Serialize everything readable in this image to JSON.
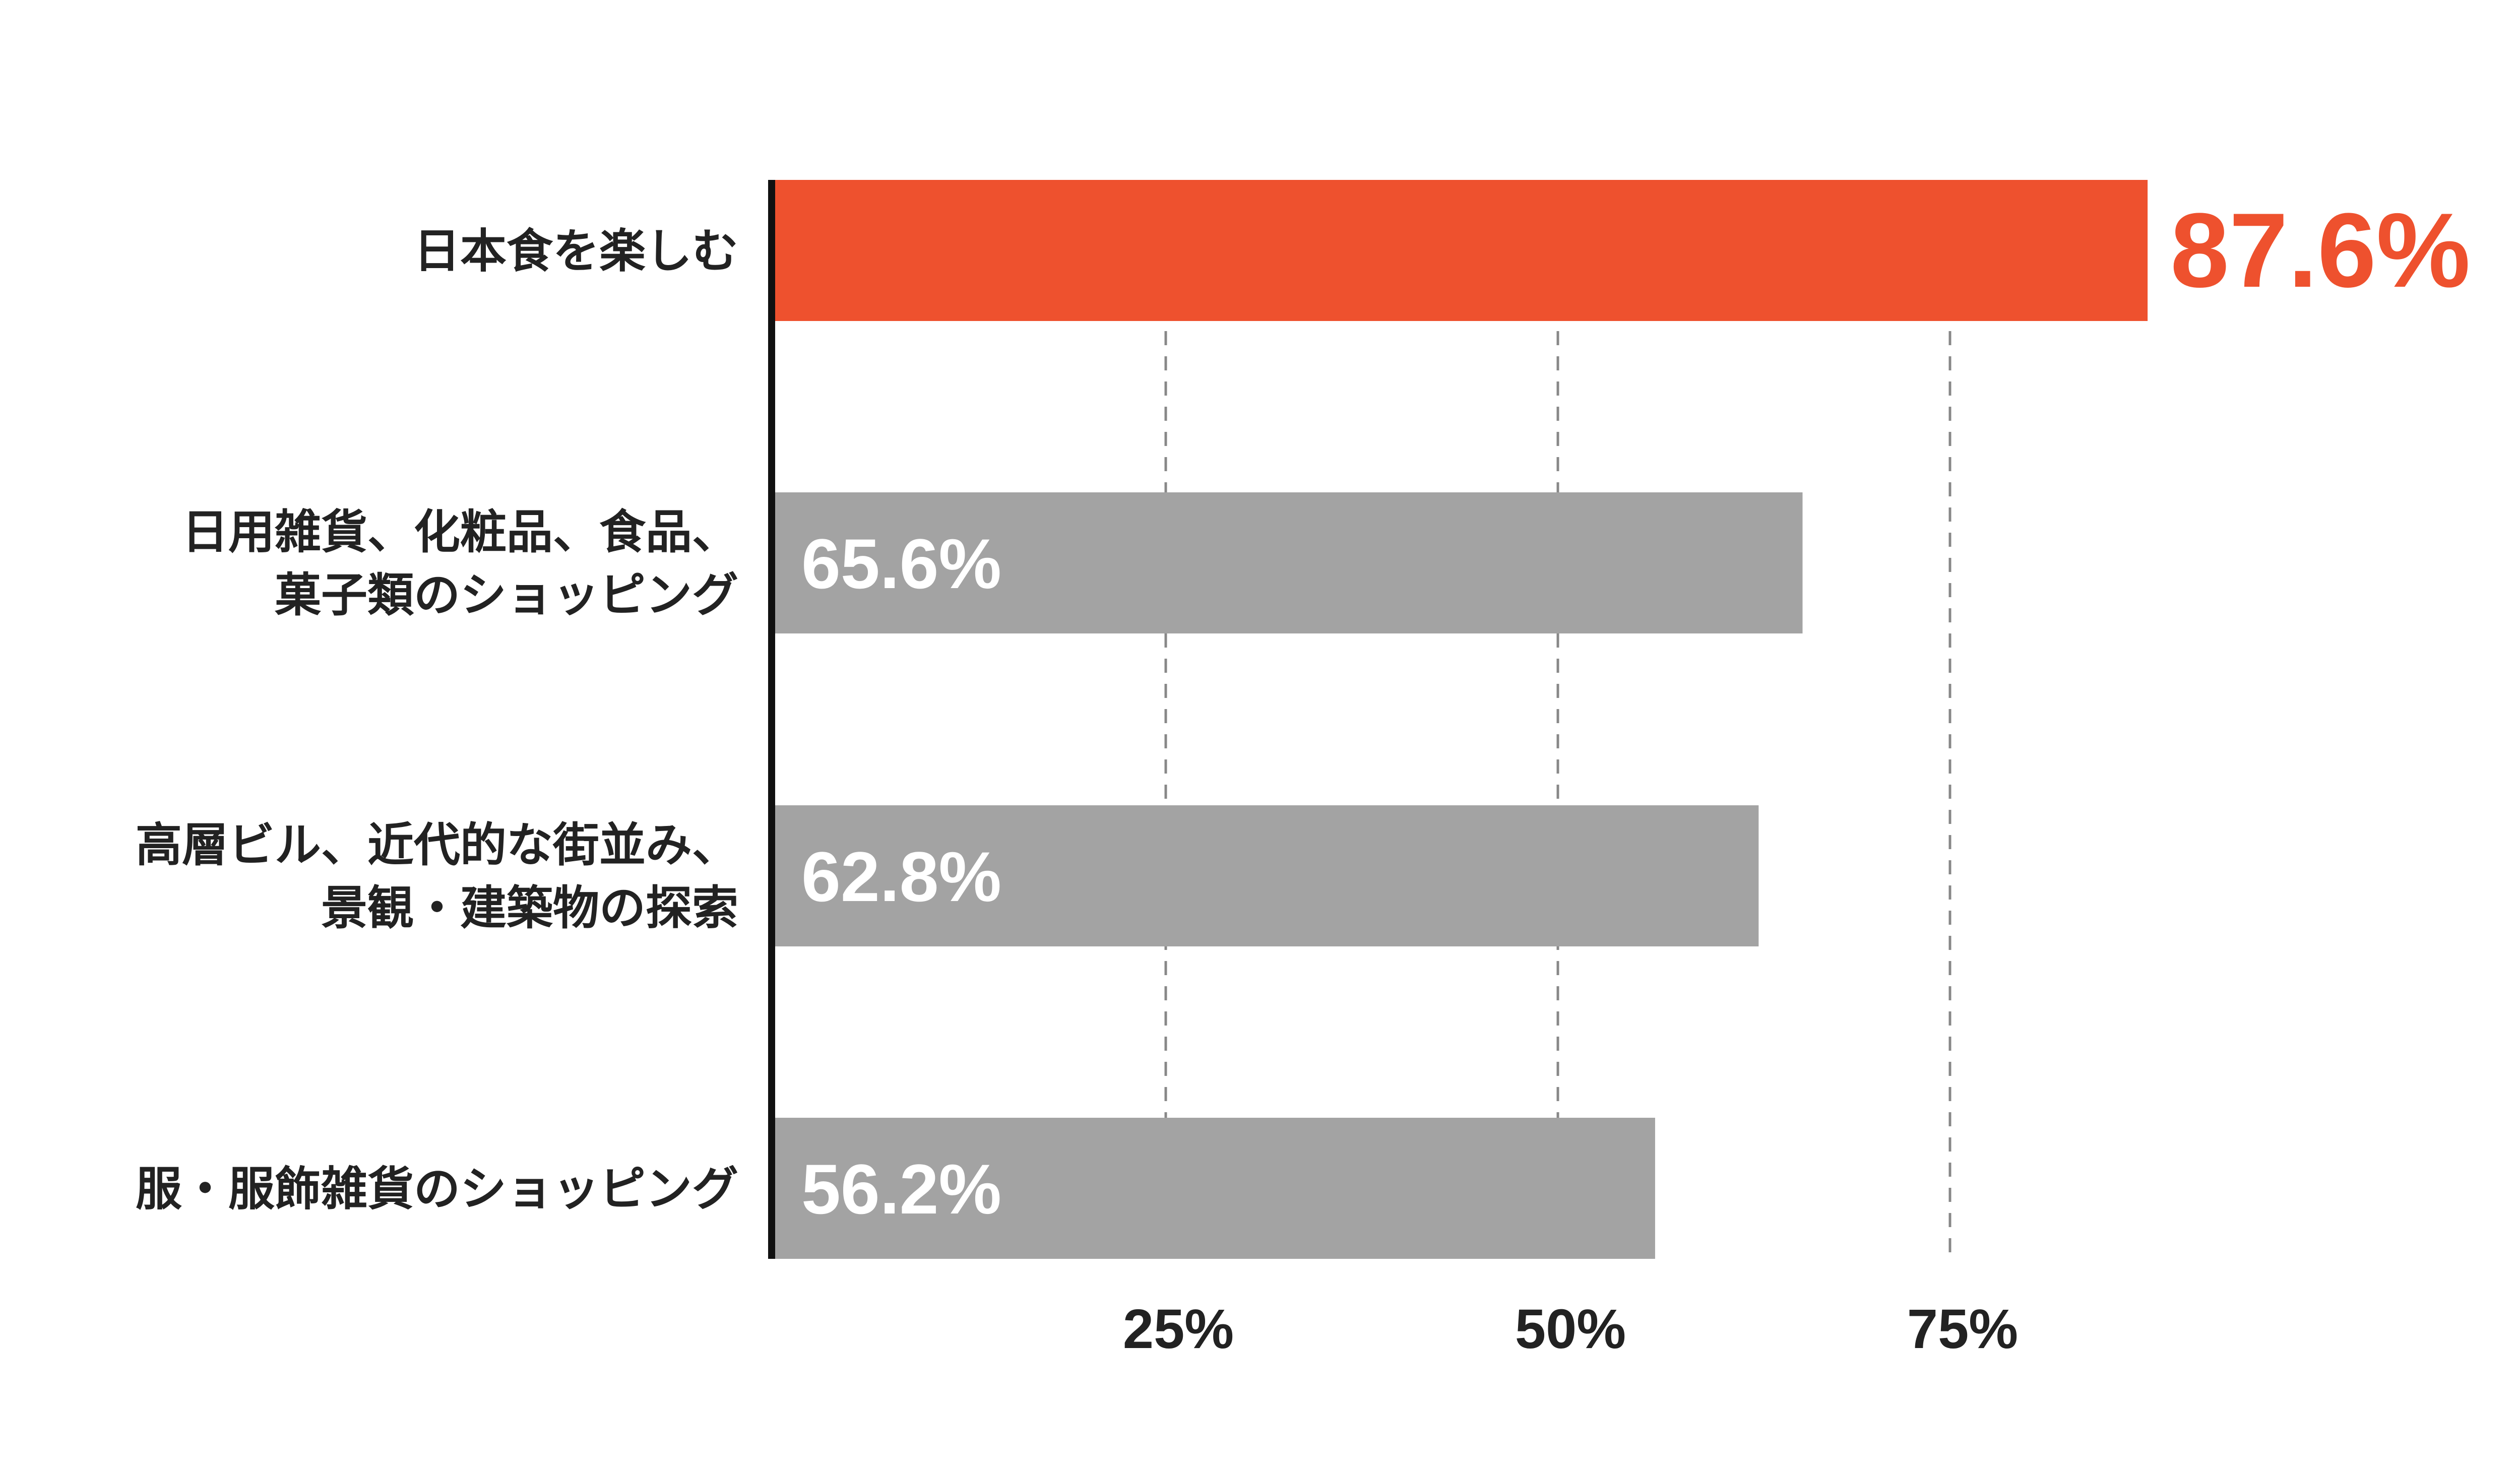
{
  "chart_data": {
    "type": "bar",
    "orientation": "horizontal",
    "categories": [
      [
        "日本食を楽しむ"
      ],
      [
        "日用雑貨、化粧品、食品、",
        "菓子類のショッピング"
      ],
      [
        "高層ビル、近代的な街並み、",
        "景観・建築物の探索"
      ],
      [
        "服・服飾雑貨のショッピング"
      ]
    ],
    "values": [
      87.6,
      65.6,
      62.8,
      56.2
    ],
    "value_labels": [
      "87.6%",
      "65.6%",
      "62.8%",
      "56.2%"
    ],
    "xlim": [
      0,
      100
    ],
    "ticks": [
      25,
      50,
      75
    ],
    "tick_labels": [
      "25%",
      "50%",
      "75%"
    ],
    "grid": "vertical-dashed",
    "colors": {
      "highlight": "#EE512E",
      "default": "#A3A3A3",
      "axis": "#111111",
      "grid": "#888888",
      "label_on_bar": "#FFFFFF",
      "text": "#222222"
    },
    "highlight_index": 0
  }
}
